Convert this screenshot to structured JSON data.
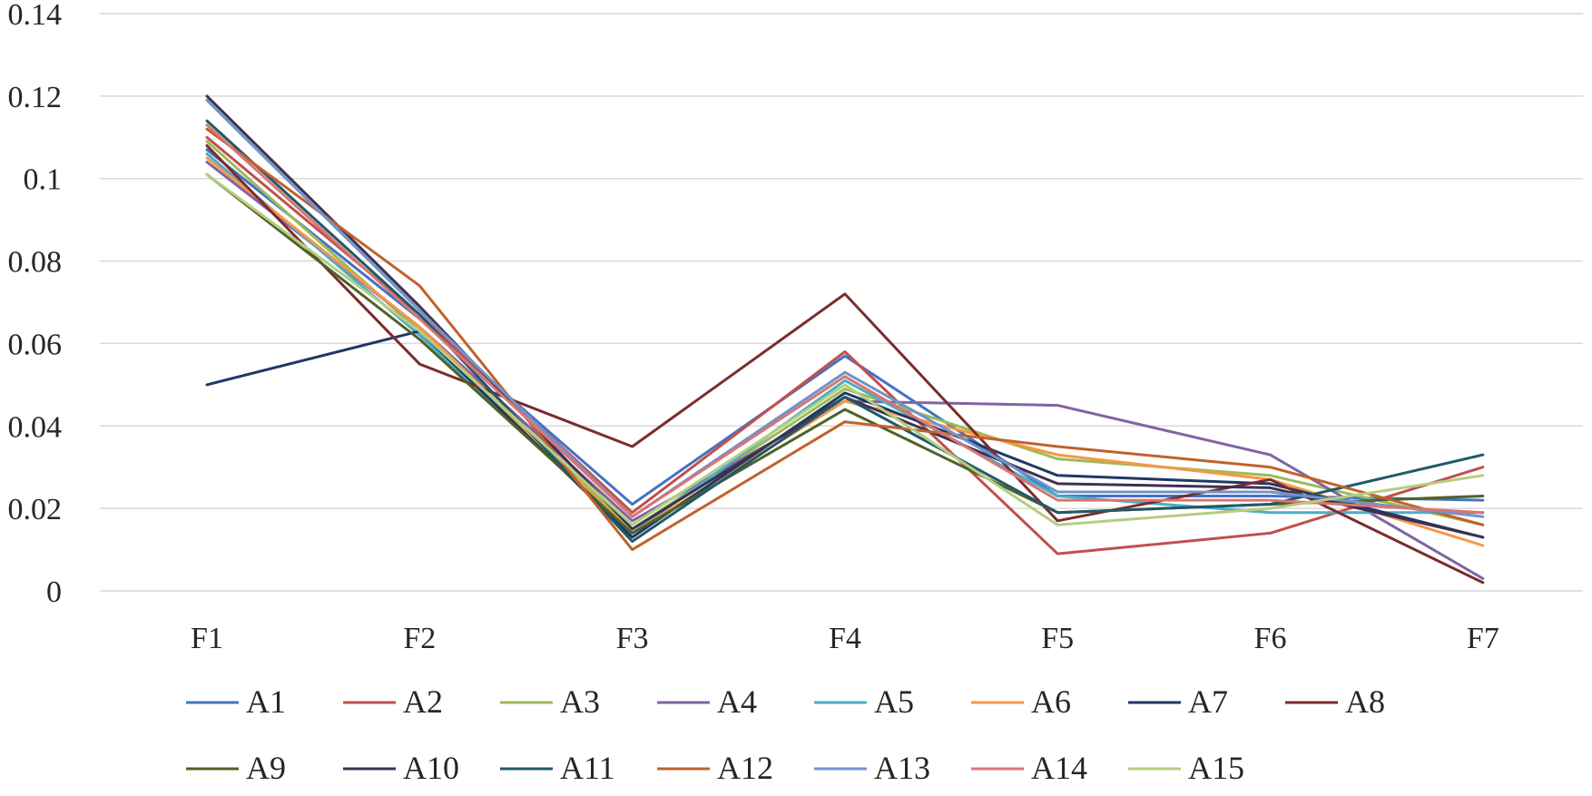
{
  "chart_data": {
    "type": "line",
    "title": "",
    "xlabel": "",
    "ylabel": "",
    "categories": [
      "F1",
      "F2",
      "F3",
      "F4",
      "F5",
      "F6",
      "F7"
    ],
    "ylim": [
      0,
      0.14
    ],
    "yticks": [
      0,
      0.02,
      0.04,
      0.06,
      0.08,
      0.1,
      0.12,
      0.14
    ],
    "ytick_labels": [
      "0",
      "0.02",
      "0.04",
      "0.06",
      "0.08",
      "0.1",
      "0.12",
      "0.14"
    ],
    "grid": true,
    "legend_position": "bottom",
    "series": [
      {
        "name": "A1",
        "color": "#4472C4",
        "values": [
          0.107,
          0.066,
          0.021,
          0.057,
          0.023,
          0.023,
          0.022
        ]
      },
      {
        "name": "A2",
        "color": "#C0504D",
        "values": [
          0.11,
          0.067,
          0.019,
          0.058,
          0.009,
          0.014,
          0.03
        ]
      },
      {
        "name": "A3",
        "color": "#9BBB59",
        "values": [
          0.109,
          0.063,
          0.015,
          0.049,
          0.032,
          0.028,
          0.016
        ]
      },
      {
        "name": "A4",
        "color": "#8064A2",
        "values": [
          0.104,
          0.064,
          0.017,
          0.046,
          0.045,
          0.033,
          0.003
        ]
      },
      {
        "name": "A5",
        "color": "#4BACC6",
        "values": [
          0.106,
          0.062,
          0.014,
          0.051,
          0.023,
          0.019,
          0.019
        ]
      },
      {
        "name": "A6",
        "color": "#F79646",
        "values": [
          0.105,
          0.064,
          0.014,
          0.046,
          0.033,
          0.027,
          0.011
        ]
      },
      {
        "name": "A7",
        "color": "#1F3864",
        "values": [
          0.05,
          0.063,
          0.013,
          0.048,
          0.028,
          0.026,
          0.013
        ]
      },
      {
        "name": "A8",
        "color": "#7B2C2C",
        "values": [
          0.108,
          0.055,
          0.035,
          0.072,
          0.017,
          0.027,
          0.002
        ]
      },
      {
        "name": "A9",
        "color": "#4F6228",
        "values": [
          0.101,
          0.061,
          0.014,
          0.044,
          0.019,
          0.021,
          0.023
        ]
      },
      {
        "name": "A10",
        "color": "#3F3151",
        "values": [
          0.12,
          0.069,
          0.015,
          0.047,
          0.026,
          0.025,
          0.013
        ]
      },
      {
        "name": "A11",
        "color": "#215968",
        "values": [
          0.114,
          0.067,
          0.012,
          0.047,
          0.019,
          0.021,
          0.033
        ]
      },
      {
        "name": "A12",
        "color": "#C0622B",
        "values": [
          0.112,
          0.074,
          0.01,
          0.041,
          0.035,
          0.03,
          0.016
        ]
      },
      {
        "name": "A13",
        "color": "#6F94CB",
        "values": [
          0.119,
          0.068,
          0.018,
          0.053,
          0.024,
          0.024,
          0.018
        ]
      },
      {
        "name": "A14",
        "color": "#D97573",
        "values": [
          0.113,
          0.066,
          0.018,
          0.052,
          0.022,
          0.022,
          0.019
        ]
      },
      {
        "name": "A15",
        "color": "#B3CE80",
        "values": [
          0.101,
          0.063,
          0.016,
          0.05,
          0.016,
          0.02,
          0.028
        ]
      }
    ]
  }
}
